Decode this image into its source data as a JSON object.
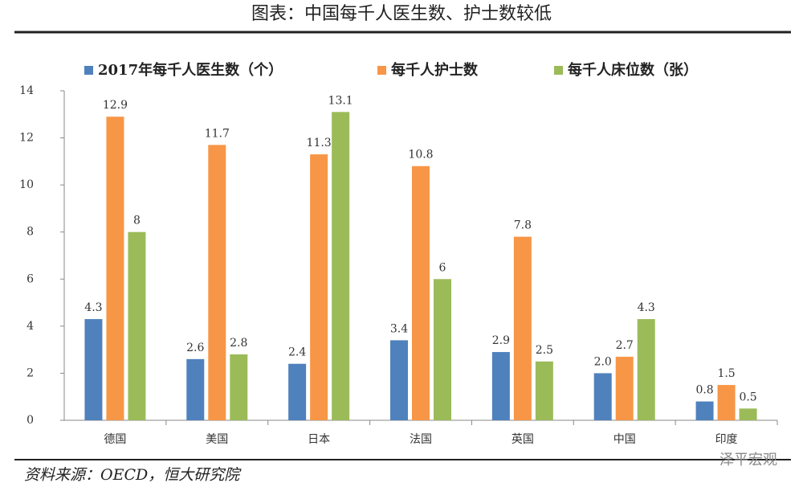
{
  "chart_data": {
    "type": "bar",
    "title": "图表：中国每千人医生数、护士数较低",
    "categories": [
      "德国",
      "美国",
      "日本",
      "法国",
      "英国",
      "中国",
      "印度"
    ],
    "series": [
      {
        "name": "2017年每千人医生数（个）",
        "color": "#4f81bd",
        "values": [
          4.3,
          2.6,
          2.4,
          3.4,
          2.9,
          2.0,
          0.8
        ],
        "value_labels": [
          "4.3",
          "2.6",
          "2.4",
          "3.4",
          "2.9",
          "2.0",
          "0.8"
        ]
      },
      {
        "name": "每千人护士数",
        "color": "#f79646",
        "values": [
          12.9,
          11.7,
          11.3,
          10.8,
          7.8,
          2.7,
          1.5
        ]
      },
      {
        "name": "每千人床位数（张）",
        "color": "#9bbb59",
        "values": [
          8,
          2.8,
          13.1,
          6,
          2.5,
          4.3,
          0.5
        ]
      }
    ],
    "ylim": [
      0,
      14
    ],
    "yticks": [
      0,
      2,
      4,
      6,
      8,
      10,
      12,
      14
    ],
    "grid": false,
    "source": "资料来源：OECD，恒大研究院",
    "watermark": "泽平宏观"
  }
}
